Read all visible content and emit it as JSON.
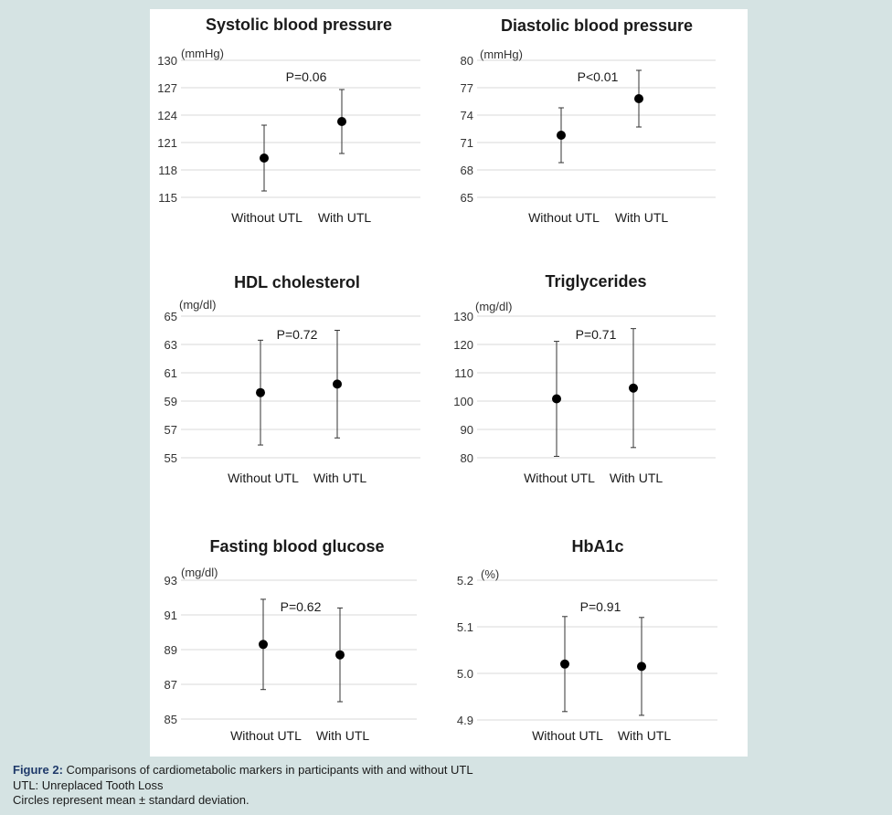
{
  "caption": {
    "label": "Figure 2:",
    "title": " Comparisons of cardiometabolic markers in participants with and without UTL",
    "line2": "UTL: Unreplaced Tooth Loss",
    "line3": "Circles represent mean ± standard deviation."
  },
  "chart_data": [
    {
      "type": "scatter",
      "title": "Systolic blood pressure",
      "unit": "(mmHg)",
      "categories": [
        "Without UTL",
        "With UTL"
      ],
      "mean": [
        119.3,
        123.3
      ],
      "sd": [
        3.6,
        3.5
      ],
      "p_value": "P=0.06",
      "ylim": [
        115,
        130
      ],
      "yticks": [
        "115",
        "118",
        "121",
        "124",
        "127",
        "130"
      ],
      "grid": true
    },
    {
      "type": "scatter",
      "title": "Diastolic blood pressure",
      "unit": "(mmHg)",
      "categories": [
        "Without UTL",
        "With UTL"
      ],
      "mean": [
        71.8,
        75.8
      ],
      "sd": [
        3.0,
        3.1
      ],
      "p_value": "P<0.01",
      "ylim": [
        65,
        80
      ],
      "yticks": [
        "65",
        "68",
        "71",
        "74",
        "77",
        "80"
      ],
      "grid": true
    },
    {
      "type": "scatter",
      "title": "HDL cholesterol",
      "unit": "(mg/dl)",
      "categories": [
        "Without UTL",
        "With UTL"
      ],
      "mean": [
        59.6,
        60.2
      ],
      "sd": [
        3.7,
        3.8
      ],
      "p_value": "P=0.72",
      "ylim": [
        55,
        65
      ],
      "yticks": [
        "55",
        "57",
        "59",
        "61",
        "63",
        "65"
      ],
      "grid": true
    },
    {
      "type": "scatter",
      "title": "Triglycerides",
      "unit": "(mg/dl)",
      "categories": [
        "Without UTL",
        "With UTL"
      ],
      "mean": [
        100.8,
        104.6
      ],
      "sd": [
        20.3,
        21.0
      ],
      "p_value": "P=0.71",
      "ylim": [
        80,
        130
      ],
      "yticks": [
        "80",
        "90",
        "100",
        "110",
        "120",
        "130"
      ],
      "grid": true
    },
    {
      "type": "scatter",
      "title": "Fasting blood glucose",
      "unit": "(mg/dl)",
      "categories": [
        "Without UTL",
        "With UTL"
      ],
      "mean": [
        89.3,
        88.7
      ],
      "sd": [
        2.6,
        2.7
      ],
      "p_value": "P=0.62",
      "ylim": [
        85,
        93
      ],
      "yticks": [
        "85",
        "87",
        "89",
        "91",
        "93"
      ],
      "grid": true
    },
    {
      "type": "scatter",
      "title": "HbA1c",
      "unit": "(%)",
      "categories": [
        "Without UTL",
        "With UTL"
      ],
      "mean": [
        5.02,
        5.015
      ],
      "sd": [
        0.102,
        0.105
      ],
      "p_value": "P=0.91",
      "ylim": [
        4.9,
        5.2
      ],
      "yticks": [
        "4.9",
        "5.0",
        "5.1",
        "5.2"
      ],
      "grid": true
    }
  ]
}
